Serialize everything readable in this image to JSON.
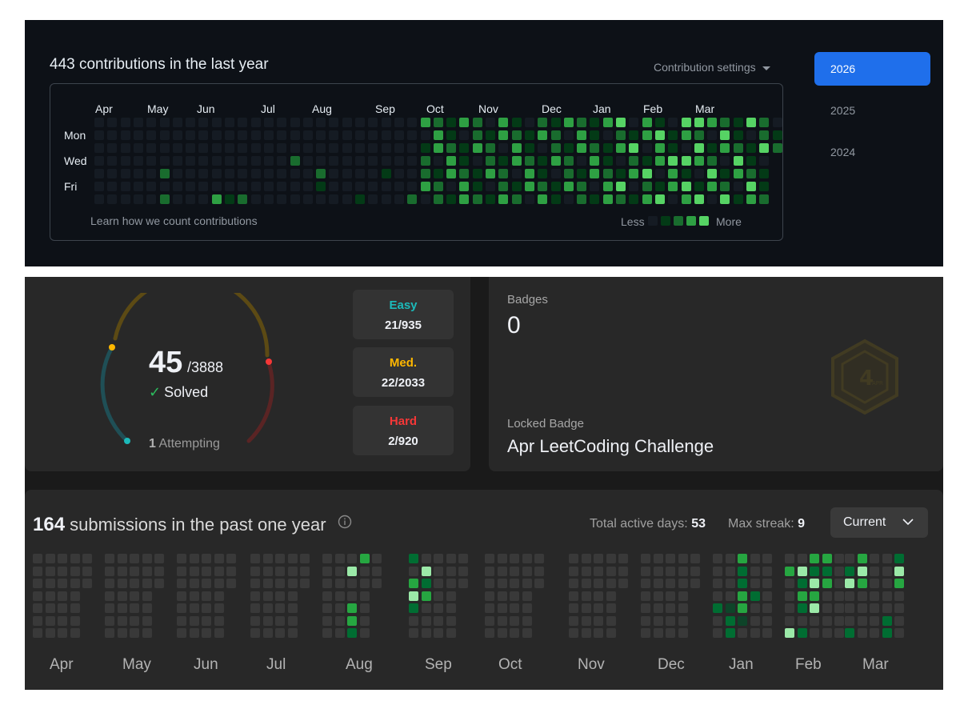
{
  "github": {
    "title": "443 contributions in the last year",
    "settings_label": "Contribution settings",
    "months": [
      "Apr",
      "May",
      "Jun",
      "Jul",
      "Aug",
      "Sep",
      "Oct",
      "Nov",
      "Dec",
      "Jan",
      "Feb",
      "Mar"
    ],
    "days": [
      "Mon",
      "Wed",
      "Fri"
    ],
    "learn_link": "Learn how we count contributions",
    "legend_less": "Less",
    "legend_more": "More",
    "years": [
      "2026",
      "2025",
      "2024"
    ],
    "active_year": "2026",
    "colors": {
      "bg": "#0d1117",
      "l0": "#151b23",
      "l1": "#033a16",
      "l2": "#196c2e",
      "l3": "#2ea043",
      "l4": "#56d364",
      "accent": "#1f6feb"
    }
  },
  "leetcode": {
    "solved": {
      "count": "45",
      "total": "/3888",
      "label": "Solved",
      "attempting_count": "1",
      "attempting_label": "Attempting",
      "fraction": 0.0116
    },
    "difficulty": [
      {
        "label": "Easy",
        "value": "21/935",
        "color": "#1cbaba"
      },
      {
        "label": "Med.",
        "value": "22/2033",
        "color": "#ffb700"
      },
      {
        "label": "Hard",
        "value": "2/920",
        "color": "#f63737"
      }
    ],
    "badges": {
      "label": "Badges",
      "count": "0",
      "locked_label": "Locked Badge",
      "locked_name": "Apr LeetCoding Challenge",
      "icon_text": "4",
      "icon_subtext": "APR"
    },
    "submissions": {
      "count": "164",
      "title_rest": "submissions in the past one year",
      "active_days_label": "Total active days:",
      "active_days": "53",
      "max_streak_label": "Max streak:",
      "max_streak": "9",
      "dropdown": "Current",
      "months": [
        "Apr",
        "May",
        "Jun",
        "Jul",
        "Aug",
        "Sep",
        "Oct",
        "Nov",
        "Dec",
        "Jan",
        "Feb",
        "Mar"
      ]
    },
    "colors": {
      "empty": "#393939",
      "l1": "#0e4429",
      "l2": "#006d32",
      "l3": "#26a641",
      "l4": "#9be9a8"
    }
  }
}
